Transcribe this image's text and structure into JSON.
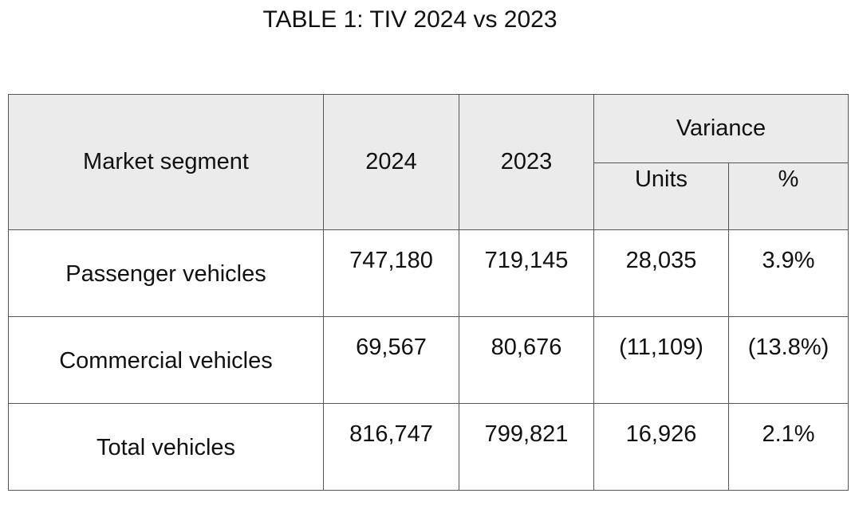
{
  "title": "TABLE 1: TIV 2024 vs 2023",
  "table": {
    "header": {
      "segment": "Market segment",
      "year1": "2024",
      "year2": "2023",
      "variance": "Variance",
      "units": "Units",
      "percent": "%"
    },
    "rows": [
      [
        "Passenger vehicles",
        "747,180",
        "719,145",
        "28,035",
        "3.9%"
      ],
      [
        "Commercial vehicles",
        "69,567",
        "80,676",
        "(11,109)",
        "(13.8%)"
      ],
      [
        "Total vehicles",
        "816,747",
        "799,821",
        "16,926",
        "2.1%"
      ]
    ]
  }
}
